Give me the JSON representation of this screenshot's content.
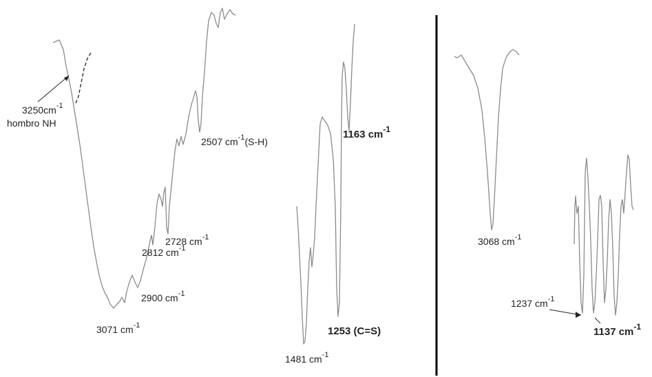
{
  "chart_data": [
    {
      "type": "line",
      "peaks": [
        {
          "value": "3250",
          "unit": "cm",
          "exp": "-1",
          "suffix": "",
          "note": "hombro NH"
        },
        {
          "value": "3071",
          "unit": " cm",
          "exp": "-1",
          "suffix": ""
        },
        {
          "value": "2900",
          "unit": " cm",
          "exp": "-1",
          "suffix": ""
        },
        {
          "value": "2812",
          "unit": " cm",
          "exp": "-1",
          "suffix": ""
        },
        {
          "value": "2728",
          "unit": " cm",
          "exp": "-1",
          "suffix": ""
        },
        {
          "value": "2507",
          "unit": " cm",
          "exp": "-1",
          "suffix": "(S-H)"
        }
      ]
    },
    {
      "type": "line",
      "peaks": [
        {
          "value": "1163",
          "unit": " cm",
          "exp": "-1",
          "suffix": ""
        },
        {
          "value": "1253",
          "unit": "",
          "exp": "",
          "suffix": "(C=S)"
        },
        {
          "value": "1481",
          "unit": " cm",
          "exp": "-1",
          "suffix": ""
        }
      ]
    },
    {
      "type": "line",
      "peaks": [
        {
          "value": "3068",
          "unit": " cm",
          "exp": "-1",
          "suffix": ""
        },
        {
          "value": "1237",
          "unit": " cm",
          "exp": "-1",
          "suffix": ""
        },
        {
          "value": "1137",
          "unit": " cm",
          "exp": "-1",
          "suffix": ""
        }
      ]
    }
  ],
  "colors": {
    "trace": "#8a8a8a",
    "text": "#222222",
    "divider": "#000000"
  }
}
